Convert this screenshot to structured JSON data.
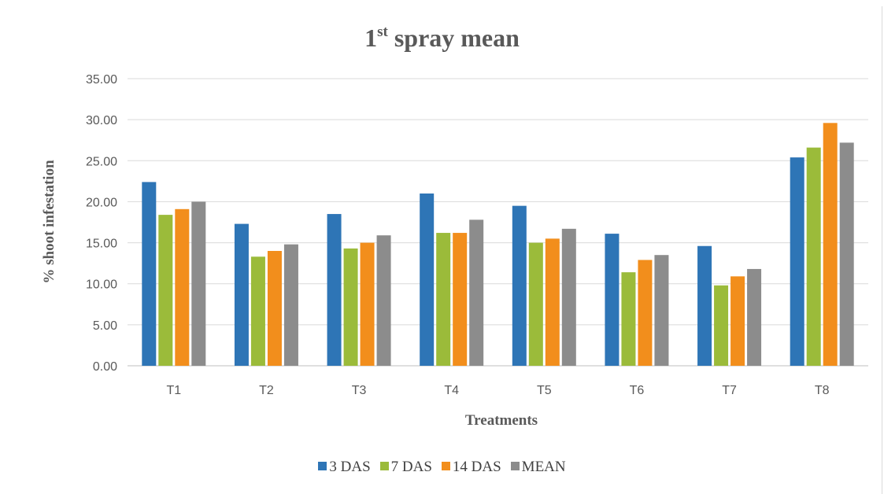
{
  "chart_data": {
    "type": "bar",
    "title_main": "1",
    "title_sup": "st",
    "title_rest": " spray mean",
    "xlabel": "Treatments",
    "ylabel": "% shoot infestation",
    "categories": [
      "T1",
      "T2",
      "T3",
      "T4",
      "T5",
      "T6",
      "T7",
      "T8"
    ],
    "ylim": [
      0,
      35
    ],
    "ytick_step": 5,
    "ytick_labels": [
      "0.00",
      "5.00",
      "10.00",
      "15.00",
      "20.00",
      "25.00",
      "30.00",
      "35.00"
    ],
    "grid": true,
    "legend_position": "bottom",
    "series": [
      {
        "name": "3 DAS",
        "color": "#2e75b6",
        "values": [
          22.4,
          17.3,
          18.5,
          21.0,
          19.5,
          16.1,
          14.6,
          25.4
        ]
      },
      {
        "name": "7 DAS",
        "color": "#9bbb3a",
        "values": [
          18.4,
          13.3,
          14.3,
          16.2,
          15.0,
          11.4,
          9.8,
          26.6
        ]
      },
      {
        "name": "14 DAS",
        "color": "#f28e1c",
        "values": [
          19.1,
          14.0,
          15.0,
          16.2,
          15.5,
          12.9,
          10.9,
          29.6
        ]
      },
      {
        "name": "MEAN",
        "color": "#8c8c8c",
        "values": [
          20.0,
          14.8,
          15.9,
          17.8,
          16.7,
          13.5,
          11.8,
          27.2
        ]
      }
    ]
  }
}
